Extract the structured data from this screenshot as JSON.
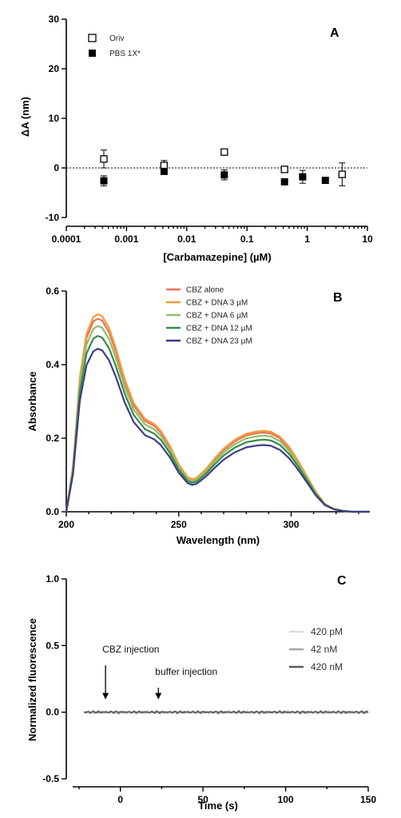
{
  "chart_data": [
    {
      "panel": "A",
      "type": "scatter",
      "xscale": "log",
      "xlim": [
        0.0001,
        10
      ],
      "ylim": [
        -10,
        30
      ],
      "xlabel": "[Carbamazepine] (µM)",
      "ylabel": "ΔA (nm)",
      "xticks": [
        "0.0001",
        "0.001",
        "0.01",
        "0.1",
        "1",
        "10"
      ],
      "yticks": [
        "-10",
        "0",
        "10",
        "20",
        "30"
      ],
      "reference_line": 0,
      "series": [
        {
          "name": "Oriv",
          "marker": "open-square",
          "points": [
            {
              "x": 0.00042,
              "y": 1.8,
              "err": 1.8
            },
            {
              "x": 0.0042,
              "y": 0.5,
              "err": 1.0
            },
            {
              "x": 0.042,
              "y": 3.2,
              "err": 0.0
            },
            {
              "x": 0.42,
              "y": -0.3,
              "err": 0.0
            },
            {
              "x": 3.8,
              "y": -1.3,
              "err": 2.3
            }
          ]
        },
        {
          "name": "PBS 1X*",
          "marker": "filled-square",
          "points": [
            {
              "x": 0.00042,
              "y": -2.6,
              "err": 1.0
            },
            {
              "x": 0.0042,
              "y": -0.7,
              "err": 0.5
            },
            {
              "x": 0.042,
              "y": -1.4,
              "err": 1.0
            },
            {
              "x": 0.42,
              "y": -2.8,
              "err": 0.5
            },
            {
              "x": 0.84,
              "y": -1.8,
              "err": 1.3
            },
            {
              "x": 2.0,
              "y": -2.5,
              "err": 0.0
            }
          ]
        }
      ]
    },
    {
      "panel": "B",
      "type": "line",
      "xlim": [
        200,
        335
      ],
      "ylim": [
        0,
        0.6
      ],
      "xlabel": "Wavelength (nm)",
      "ylabel": "Absorbance",
      "xticks": [
        "200",
        "250",
        "300"
      ],
      "yticks": [
        "0.0",
        "0.2",
        "0.4",
        "0.6"
      ],
      "peak_shape": {
        "wavelength": [
          200,
          203,
          206,
          209,
          212,
          214,
          216,
          219,
          222,
          226,
          230,
          235,
          239,
          242,
          246,
          250,
          254,
          256,
          258,
          262,
          266,
          270,
          275,
          280,
          285,
          288,
          291,
          295,
          299,
          303,
          307,
          311,
          315,
          319,
          323,
          327,
          331,
          335
        ],
        "relative": [
          0.0,
          0.23,
          0.68,
          0.9,
          0.985,
          1.0,
          0.99,
          0.93,
          0.83,
          0.67,
          0.55,
          0.47,
          0.445,
          0.41,
          0.335,
          0.24,
          0.175,
          0.165,
          0.172,
          0.215,
          0.27,
          0.32,
          0.365,
          0.395,
          0.407,
          0.41,
          0.405,
          0.38,
          0.33,
          0.26,
          0.18,
          0.1,
          0.04,
          0.015,
          0.005,
          0.0,
          0.0,
          0.0
        ]
      },
      "series": [
        {
          "name": "CBZ alone",
          "peak": 0.525,
          "color": "#e8735a"
        },
        {
          "name": "CBZ + DNA   3 µM",
          "peak": 0.537,
          "color": "#f59b3a"
        },
        {
          "name": "CBZ + DNA   6 µM",
          "peak": 0.505,
          "color": "#8fbf6a"
        },
        {
          "name": "CBZ + DNA  12 µM",
          "peak": 0.478,
          "color": "#3a8a4a"
        },
        {
          "name": "CBZ + DNA  23 µM",
          "peak": 0.443,
          "color": "#3c3e86"
        }
      ]
    },
    {
      "panel": "C",
      "type": "line",
      "xlim": [
        -25,
        150
      ],
      "ylim": [
        -0.5,
        1.0
      ],
      "xlabel": "Time (s)",
      "ylabel": "Normalized fluorescence",
      "xticks": [
        "0",
        "50",
        "100",
        "150"
      ],
      "yticks": [
        "-0.5",
        "0.0",
        "0.5",
        "1.0"
      ],
      "annotations": [
        {
          "text": "CBZ injection",
          "x": -9
        },
        {
          "text": "buffer injection",
          "x": 23
        }
      ],
      "trace": {
        "x_start": -22,
        "x_end": 150,
        "level": 0.0
      },
      "series": [
        {
          "name": "420 pM",
          "color": "#dcdcdc"
        },
        {
          "name": "42 nM",
          "color": "#a8a8a8"
        },
        {
          "name": "420 nM",
          "color": "#5a5a5a"
        }
      ]
    }
  ]
}
